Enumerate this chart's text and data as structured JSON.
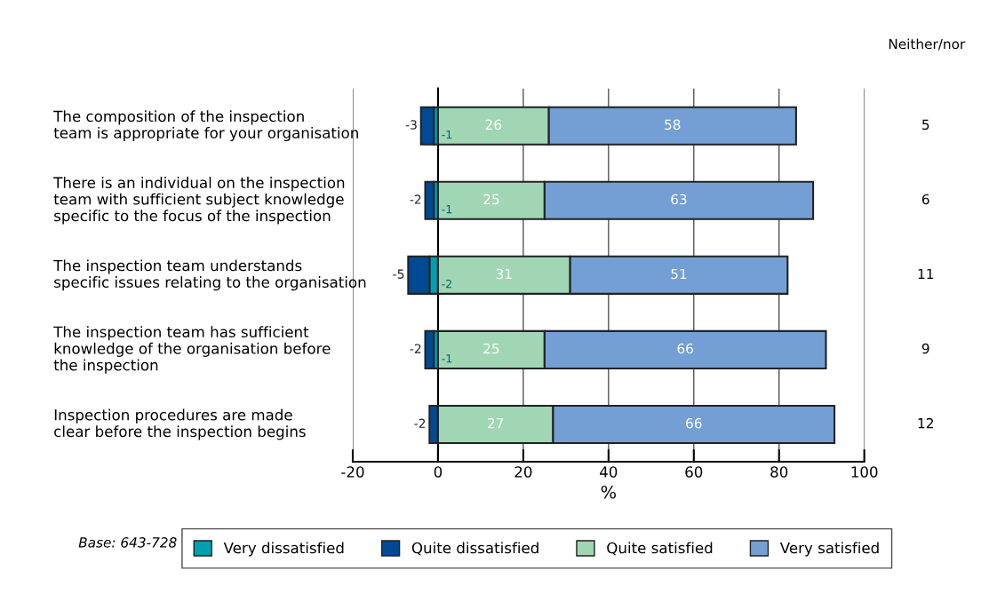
{
  "chart_data": {
    "type": "bar",
    "orientation": "horizontal",
    "stacked": true,
    "xlabel": "%",
    "categories": [
      "The composition of the inspection\nteam is appropriate for your organisation",
      "There is an individual on the inspection\nteam with sufficient subject knowledge\nspecific to the focus of the inspection",
      "The inspection team understands\nspecific issues relating to the organisation",
      "The inspection team has sufficient\nknowledge of the organisation before\nthe inspection",
      "Inspection procedures are made\nclear before the inspection begins"
    ],
    "series": [
      {
        "name": "Very dissatisfied",
        "color": "#00a0b0",
        "values": [
          -1,
          -1,
          -2,
          -1,
          null
        ],
        "value_labels": [
          "-1",
          "-1",
          "-2",
          "-1",
          null
        ]
      },
      {
        "name": "Quite dissatisfied",
        "color": "#004a93",
        "values": [
          -3,
          -2,
          -5,
          -2,
          -2
        ],
        "value_labels": [
          "-3",
          "-2",
          "-5",
          "-2",
          "-2"
        ]
      },
      {
        "name": "Quite satisfied",
        "color": "#a0d6b4",
        "values": [
          26,
          25,
          31,
          25,
          27
        ],
        "value_labels": [
          "26",
          "25",
          "31",
          "25",
          "27"
        ]
      },
      {
        "name": "Very satisfied",
        "color": "#739fd4",
        "values": [
          58,
          63,
          51,
          66,
          66
        ],
        "value_labels": [
          "58",
          "63",
          "51",
          "66",
          "66"
        ]
      }
    ],
    "xlim": [
      -20,
      100
    ],
    "xticks": [
      {
        "value": -20,
        "label": "-20"
      },
      0,
      20,
      40,
      60,
      80,
      100
    ],
    "grid": "x",
    "legend": "bottom",
    "annotations": [
      "Neither/nor",
      "5",
      "6",
      "11",
      "9",
      "12",
      "Base: 643-728"
    ]
  }
}
